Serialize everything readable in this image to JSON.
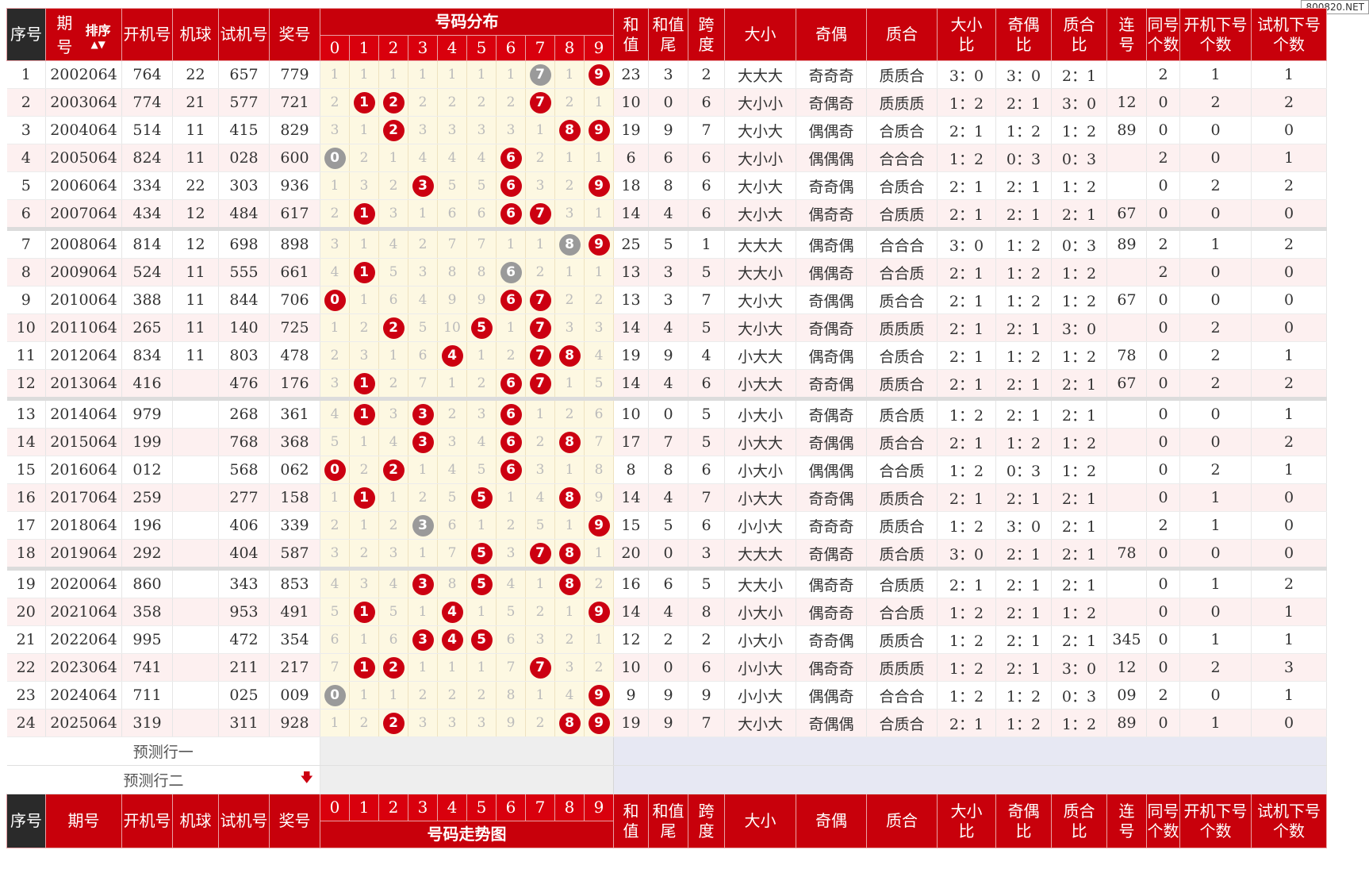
{
  "brand": "800820.NET",
  "headers": {
    "seq": "序号",
    "period_a": "期",
    "period_b": "号",
    "period_full": "期号",
    "sort": "排序",
    "open": "开机号",
    "machine": "机球",
    "test": "试机号",
    "prize": "奖号",
    "dist": "号码分布",
    "trend": "号码走势图",
    "digits": [
      "0",
      "1",
      "2",
      "3",
      "4",
      "5",
      "6",
      "7",
      "8",
      "9"
    ],
    "sum_a": "和",
    "sum_b": "值",
    "tail_a": "和值",
    "tail_b": "尾",
    "span_a": "跨",
    "span_b": "度",
    "size": "大小",
    "parity": "奇偶",
    "prime": "质合",
    "sr_a": "大小",
    "sr_b": "比",
    "pr_a": "奇偶",
    "pr_b": "比",
    "cr_a": "质合",
    "cr_b": "比",
    "con_a": "连",
    "con_b": "号",
    "same_a": "同号",
    "same_b": "个数",
    "onext_a": "开机下号",
    "onext_b": "个数",
    "tnext_a": "试机下号",
    "tnext_b": "个数"
  },
  "rows": [
    {
      "n": "1",
      "p": "2002064",
      "o": "764",
      "m": "22",
      "t": "657",
      "z": "779",
      "d": [
        "1",
        "1",
        "1",
        "1",
        "1",
        "1",
        "1",
        "7",
        "1",
        "9"
      ],
      "b": [
        null,
        null,
        null,
        null,
        null,
        null,
        null,
        "gray",
        null,
        "red"
      ],
      "sum": "23",
      "tail": "3",
      "span": "2",
      "size": "大大大",
      "par": "奇奇奇",
      "prm": "质质合",
      "sr": "3：0",
      "pr": "3：0",
      "cr": "2：1",
      "con": "",
      "same": "2",
      "on": "1",
      "tn": "1"
    },
    {
      "n": "2",
      "p": "2003064",
      "o": "774",
      "m": "21",
      "t": "577",
      "z": "721",
      "d": [
        "2",
        "1",
        "2",
        "2",
        "2",
        "2",
        "2",
        "7",
        "2",
        "1"
      ],
      "b": [
        null,
        "red",
        "red",
        null,
        null,
        null,
        null,
        "red",
        null,
        null
      ],
      "sum": "10",
      "tail": "0",
      "span": "6",
      "size": "大小小",
      "par": "奇偶奇",
      "prm": "质质质",
      "sr": "1：2",
      "pr": "2：1",
      "cr": "3：0",
      "con": "12",
      "same": "0",
      "on": "2",
      "tn": "2"
    },
    {
      "n": "3",
      "p": "2004064",
      "o": "514",
      "m": "11",
      "t": "415",
      "z": "829",
      "d": [
        "3",
        "1",
        "2",
        "3",
        "3",
        "3",
        "3",
        "1",
        "8",
        "9"
      ],
      "b": [
        null,
        null,
        "red",
        null,
        null,
        null,
        null,
        null,
        "red",
        "red"
      ],
      "sum": "19",
      "tail": "9",
      "span": "7",
      "size": "大小大",
      "par": "偶偶奇",
      "prm": "合质合",
      "sr": "2：1",
      "pr": "1：2",
      "cr": "1：2",
      "con": "89",
      "same": "0",
      "on": "0",
      "tn": "0"
    },
    {
      "n": "4",
      "p": "2005064",
      "o": "824",
      "m": "11",
      "t": "028",
      "z": "600",
      "d": [
        "0",
        "2",
        "1",
        "4",
        "4",
        "4",
        "6",
        "2",
        "1",
        "1"
      ],
      "b": [
        "gray",
        null,
        null,
        null,
        null,
        null,
        "red",
        null,
        null,
        null
      ],
      "sum": "6",
      "tail": "6",
      "span": "6",
      "size": "大小小",
      "par": "偶偶偶",
      "prm": "合合合",
      "sr": "1：2",
      "pr": "0：3",
      "cr": "0：3",
      "con": "",
      "same": "2",
      "on": "0",
      "tn": "1"
    },
    {
      "n": "5",
      "p": "2006064",
      "o": "334",
      "m": "22",
      "t": "303",
      "z": "936",
      "d": [
        "1",
        "3",
        "2",
        "3",
        "5",
        "5",
        "6",
        "3",
        "2",
        "9"
      ],
      "b": [
        null,
        null,
        null,
        "red",
        null,
        null,
        "red",
        null,
        null,
        "red"
      ],
      "sum": "18",
      "tail": "8",
      "span": "6",
      "size": "大小大",
      "par": "奇奇偶",
      "prm": "合质合",
      "sr": "2：1",
      "pr": "2：1",
      "cr": "1：2",
      "con": "",
      "same": "0",
      "on": "2",
      "tn": "2"
    },
    {
      "n": "6",
      "p": "2007064",
      "o": "434",
      "m": "12",
      "t": "484",
      "z": "617",
      "d": [
        "2",
        "1",
        "3",
        "1",
        "6",
        "6",
        "6",
        "7",
        "3",
        "1"
      ],
      "b": [
        null,
        "red",
        null,
        null,
        null,
        null,
        "red",
        "red",
        null,
        null
      ],
      "sum": "14",
      "tail": "4",
      "span": "6",
      "size": "大小大",
      "par": "偶奇奇",
      "prm": "合质质",
      "sr": "2：1",
      "pr": "2：1",
      "cr": "2：1",
      "con": "67",
      "same": "0",
      "on": "0",
      "tn": "0"
    },
    {
      "n": "7",
      "p": "2008064",
      "o": "814",
      "m": "12",
      "t": "698",
      "z": "898",
      "d": [
        "3",
        "1",
        "4",
        "2",
        "7",
        "7",
        "1",
        "1",
        "8",
        "9"
      ],
      "b": [
        null,
        null,
        null,
        null,
        null,
        null,
        null,
        null,
        "gray",
        "red"
      ],
      "sum": "25",
      "tail": "5",
      "span": "1",
      "size": "大大大",
      "par": "偶奇偶",
      "prm": "合合合",
      "sr": "3：0",
      "pr": "1：2",
      "cr": "0：3",
      "con": "89",
      "same": "2",
      "on": "1",
      "tn": "2"
    },
    {
      "n": "8",
      "p": "2009064",
      "o": "524",
      "m": "11",
      "t": "555",
      "z": "661",
      "d": [
        "4",
        "1",
        "5",
        "3",
        "8",
        "8",
        "6",
        "2",
        "1",
        "1"
      ],
      "b": [
        null,
        "red",
        null,
        null,
        null,
        null,
        "gray",
        null,
        null,
        null
      ],
      "sum": "13",
      "tail": "3",
      "span": "5",
      "size": "大大小",
      "par": "偶偶奇",
      "prm": "合合质",
      "sr": "2：1",
      "pr": "1：2",
      "cr": "1：2",
      "con": "",
      "same": "2",
      "on": "0",
      "tn": "0"
    },
    {
      "n": "9",
      "p": "2010064",
      "o": "388",
      "m": "11",
      "t": "844",
      "z": "706",
      "d": [
        "0",
        "1",
        "6",
        "4",
        "9",
        "9",
        "6",
        "7",
        "2",
        "2"
      ],
      "b": [
        "red",
        null,
        null,
        null,
        null,
        null,
        "red",
        "red",
        null,
        null
      ],
      "sum": "13",
      "tail": "3",
      "span": "7",
      "size": "大小大",
      "par": "奇偶偶",
      "prm": "质合合",
      "sr": "2：1",
      "pr": "1：2",
      "cr": "1：2",
      "con": "67",
      "same": "0",
      "on": "0",
      "tn": "0"
    },
    {
      "n": "10",
      "p": "2011064",
      "o": "265",
      "m": "11",
      "t": "140",
      "z": "725",
      "d": [
        "1",
        "2",
        "2",
        "5",
        "10",
        "5",
        "1",
        "7",
        "3",
        "3"
      ],
      "b": [
        null,
        null,
        "red",
        null,
        null,
        "red",
        null,
        "red",
        null,
        null
      ],
      "sum": "14",
      "tail": "4",
      "span": "5",
      "size": "大小大",
      "par": "奇偶奇",
      "prm": "质质质",
      "sr": "2：1",
      "pr": "2：1",
      "cr": "3：0",
      "con": "",
      "same": "0",
      "on": "2",
      "tn": "0"
    },
    {
      "n": "11",
      "p": "2012064",
      "o": "834",
      "m": "11",
      "t": "803",
      "z": "478",
      "d": [
        "2",
        "3",
        "1",
        "6",
        "4",
        "1",
        "2",
        "7",
        "8",
        "4"
      ],
      "b": [
        null,
        null,
        null,
        null,
        "red",
        null,
        null,
        "red",
        "red",
        null
      ],
      "sum": "19",
      "tail": "9",
      "span": "4",
      "size": "小大大",
      "par": "偶奇偶",
      "prm": "合质合",
      "sr": "2：1",
      "pr": "1：2",
      "cr": "1：2",
      "con": "78",
      "same": "0",
      "on": "2",
      "tn": "1"
    },
    {
      "n": "12",
      "p": "2013064",
      "o": "416",
      "m": "",
      "t": "476",
      "z": "176",
      "d": [
        "3",
        "1",
        "2",
        "7",
        "1",
        "2",
        "6",
        "7",
        "1",
        "5"
      ],
      "b": [
        null,
        "red",
        null,
        null,
        null,
        null,
        "red",
        "red",
        null,
        null
      ],
      "sum": "14",
      "tail": "4",
      "span": "6",
      "size": "小大大",
      "par": "奇奇偶",
      "prm": "质质合",
      "sr": "2：1",
      "pr": "2：1",
      "cr": "2：1",
      "con": "67",
      "same": "0",
      "on": "2",
      "tn": "2"
    },
    {
      "n": "13",
      "p": "2014064",
      "o": "979",
      "m": "",
      "t": "268",
      "z": "361",
      "d": [
        "4",
        "1",
        "3",
        "3",
        "2",
        "3",
        "6",
        "1",
        "2",
        "6"
      ],
      "b": [
        null,
        "red",
        null,
        "red",
        null,
        null,
        "red",
        null,
        null,
        null
      ],
      "sum": "10",
      "tail": "0",
      "span": "5",
      "size": "小大小",
      "par": "奇偶奇",
      "prm": "质合质",
      "sr": "1：2",
      "pr": "2：1",
      "cr": "2：1",
      "con": "",
      "same": "0",
      "on": "0",
      "tn": "1"
    },
    {
      "n": "14",
      "p": "2015064",
      "o": "199",
      "m": "",
      "t": "768",
      "z": "368",
      "d": [
        "5",
        "1",
        "4",
        "3",
        "3",
        "4",
        "6",
        "2",
        "8",
        "7"
      ],
      "b": [
        null,
        null,
        null,
        "red",
        null,
        null,
        "red",
        null,
        "red",
        null
      ],
      "sum": "17",
      "tail": "7",
      "span": "5",
      "size": "小大大",
      "par": "奇偶偶",
      "prm": "质合合",
      "sr": "2：1",
      "pr": "1：2",
      "cr": "1：2",
      "con": "",
      "same": "0",
      "on": "0",
      "tn": "2"
    },
    {
      "n": "15",
      "p": "2016064",
      "o": "012",
      "m": "",
      "t": "568",
      "z": "062",
      "d": [
        "0",
        "2",
        "2",
        "1",
        "4",
        "5",
        "6",
        "3",
        "1",
        "8"
      ],
      "b": [
        "red",
        null,
        "red",
        null,
        null,
        null,
        "red",
        null,
        null,
        null
      ],
      "sum": "8",
      "tail": "8",
      "span": "6",
      "size": "小大小",
      "par": "偶偶偶",
      "prm": "合合质",
      "sr": "1：2",
      "pr": "0：3",
      "cr": "1：2",
      "con": "",
      "same": "0",
      "on": "2",
      "tn": "1"
    },
    {
      "n": "16",
      "p": "2017064",
      "o": "259",
      "m": "",
      "t": "277",
      "z": "158",
      "d": [
        "1",
        "1",
        "1",
        "2",
        "5",
        "5",
        "1",
        "4",
        "8",
        "9"
      ],
      "b": [
        null,
        "red",
        null,
        null,
        null,
        "red",
        null,
        null,
        "red",
        null
      ],
      "sum": "14",
      "tail": "4",
      "span": "7",
      "size": "小大大",
      "par": "奇奇偶",
      "prm": "质质合",
      "sr": "2：1",
      "pr": "2：1",
      "cr": "2：1",
      "con": "",
      "same": "0",
      "on": "1",
      "tn": "0"
    },
    {
      "n": "17",
      "p": "2018064",
      "o": "196",
      "m": "",
      "t": "406",
      "z": "339",
      "d": [
        "2",
        "1",
        "2",
        "3",
        "6",
        "1",
        "2",
        "5",
        "1",
        "9"
      ],
      "b": [
        null,
        null,
        null,
        "gray",
        null,
        null,
        null,
        null,
        null,
        "red"
      ],
      "sum": "15",
      "tail": "5",
      "span": "6",
      "size": "小小大",
      "par": "奇奇奇",
      "prm": "质质合",
      "sr": "1：2",
      "pr": "3：0",
      "cr": "2：1",
      "con": "",
      "same": "2",
      "on": "1",
      "tn": "0"
    },
    {
      "n": "18",
      "p": "2019064",
      "o": "292",
      "m": "",
      "t": "404",
      "z": "587",
      "d": [
        "3",
        "2",
        "3",
        "1",
        "7",
        "5",
        "3",
        "7",
        "8",
        "1"
      ],
      "b": [
        null,
        null,
        null,
        null,
        null,
        "red",
        null,
        "red",
        "red",
        null
      ],
      "sum": "20",
      "tail": "0",
      "span": "3",
      "size": "大大大",
      "par": "奇偶奇",
      "prm": "质合质",
      "sr": "3：0",
      "pr": "2：1",
      "cr": "2：1",
      "con": "78",
      "same": "0",
      "on": "0",
      "tn": "0"
    },
    {
      "n": "19",
      "p": "2020064",
      "o": "860",
      "m": "",
      "t": "343",
      "z": "853",
      "d": [
        "4",
        "3",
        "4",
        "3",
        "8",
        "5",
        "4",
        "1",
        "8",
        "2"
      ],
      "b": [
        null,
        null,
        null,
        "red",
        null,
        "red",
        null,
        null,
        "red",
        null
      ],
      "sum": "16",
      "tail": "6",
      "span": "5",
      "size": "大大小",
      "par": "偶奇奇",
      "prm": "合质质",
      "sr": "2：1",
      "pr": "2：1",
      "cr": "2：1",
      "con": "",
      "same": "0",
      "on": "1",
      "tn": "2"
    },
    {
      "n": "20",
      "p": "2021064",
      "o": "358",
      "m": "",
      "t": "953",
      "z": "491",
      "d": [
        "5",
        "1",
        "5",
        "1",
        "4",
        "1",
        "5",
        "2",
        "1",
        "9"
      ],
      "b": [
        null,
        "red",
        null,
        null,
        "red",
        null,
        null,
        null,
        null,
        "red"
      ],
      "sum": "14",
      "tail": "4",
      "span": "8",
      "size": "小大小",
      "par": "偶奇奇",
      "prm": "合合质",
      "sr": "1：2",
      "pr": "2：1",
      "cr": "1：2",
      "con": "",
      "same": "0",
      "on": "0",
      "tn": "1"
    },
    {
      "n": "21",
      "p": "2022064",
      "o": "995",
      "m": "",
      "t": "472",
      "z": "354",
      "d": [
        "6",
        "1",
        "6",
        "3",
        "4",
        "5",
        "6",
        "3",
        "2",
        "1"
      ],
      "b": [
        null,
        null,
        null,
        "red",
        "red",
        "red",
        null,
        null,
        null,
        null
      ],
      "sum": "12",
      "tail": "2",
      "span": "2",
      "size": "小大小",
      "par": "奇奇偶",
      "prm": "质质合",
      "sr": "1：2",
      "pr": "2：1",
      "cr": "2：1",
      "con": "345",
      "same": "0",
      "on": "1",
      "tn": "1"
    },
    {
      "n": "22",
      "p": "2023064",
      "o": "741",
      "m": "",
      "t": "211",
      "z": "217",
      "d": [
        "7",
        "1",
        "2",
        "1",
        "1",
        "1",
        "7",
        "7",
        "3",
        "2"
      ],
      "b": [
        null,
        "red",
        "red",
        null,
        null,
        null,
        null,
        "red",
        null,
        null
      ],
      "sum": "10",
      "tail": "0",
      "span": "6",
      "size": "小小大",
      "par": "偶奇奇",
      "prm": "质质质",
      "sr": "1：2",
      "pr": "2：1",
      "cr": "3：0",
      "con": "12",
      "same": "0",
      "on": "2",
      "tn": "3"
    },
    {
      "n": "23",
      "p": "2024064",
      "o": "711",
      "m": "",
      "t": "025",
      "z": "009",
      "d": [
        "0",
        "1",
        "1",
        "2",
        "2",
        "2",
        "8",
        "1",
        "4",
        "9"
      ],
      "b": [
        "gray",
        null,
        null,
        null,
        null,
        null,
        null,
        null,
        null,
        "red"
      ],
      "sum": "9",
      "tail": "9",
      "span": "9",
      "size": "小小大",
      "par": "偶偶奇",
      "prm": "合合合",
      "sr": "1：2",
      "pr": "1：2",
      "cr": "0：3",
      "con": "09",
      "same": "2",
      "on": "0",
      "tn": "1"
    },
    {
      "n": "24",
      "p": "2025064",
      "o": "319",
      "m": "",
      "t": "311",
      "z": "928",
      "d": [
        "1",
        "2",
        "2",
        "3",
        "3",
        "3",
        "9",
        "2",
        "8",
        "9"
      ],
      "b": [
        null,
        null,
        "red",
        null,
        null,
        null,
        null,
        null,
        "red",
        "red"
      ],
      "sum": "19",
      "tail": "9",
      "span": "7",
      "size": "大小大",
      "par": "奇偶偶",
      "prm": "合质合",
      "sr": "2：1",
      "pr": "1：2",
      "cr": "1：2",
      "con": "89",
      "same": "0",
      "on": "1",
      "tn": "0"
    }
  ],
  "predict": [
    "预测行一",
    "预测行二"
  ]
}
